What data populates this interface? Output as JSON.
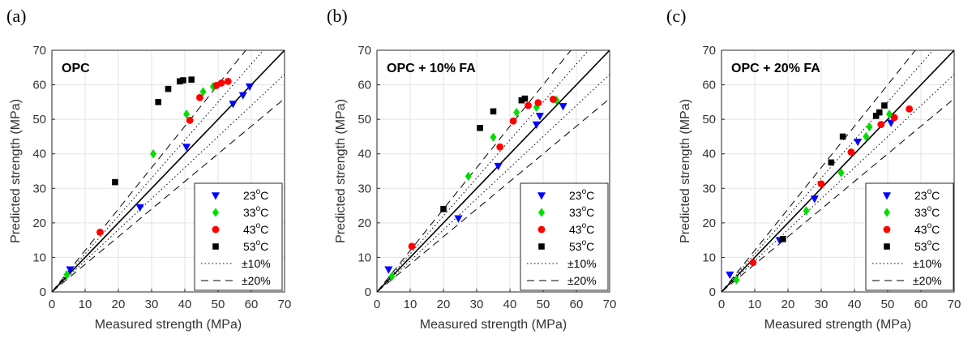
{
  "chart_data": [
    {
      "type": "scatter",
      "panel_label": "(a)",
      "title": "OPC",
      "xlabel": "Measured strength (MPa)",
      "ylabel": "Predicted strength (MPa)",
      "xlim": [
        0,
        70
      ],
      "ylim": [
        0,
        70
      ],
      "ticks": [
        0,
        10,
        20,
        30,
        40,
        50,
        60,
        70
      ],
      "grid": true,
      "legend_position": "bottom-right",
      "series": [
        {
          "name": "23",
          "unit": "oC",
          "marker": "triangle-down",
          "color": "#0000ff",
          "points": [
            [
              5.5,
              6.5
            ],
            [
              26.5,
              24.5
            ],
            [
              40.5,
              42
            ],
            [
              54.5,
              54.5
            ],
            [
              57.5,
              57
            ],
            [
              59.5,
              59.5
            ]
          ]
        },
        {
          "name": "33",
          "unit": "oC",
          "marker": "diamond",
          "color": "#00dd00",
          "points": [
            [
              4.5,
              5
            ],
            [
              30.5,
              40
            ],
            [
              40.5,
              51.5
            ],
            [
              45.5,
              58
            ],
            [
              48.5,
              59.5
            ]
          ]
        },
        {
          "name": "43",
          "unit": "oC",
          "marker": "circle",
          "color": "#ff0000",
          "points": [
            [
              14.5,
              17.3
            ],
            [
              41.5,
              49.7
            ],
            [
              44.5,
              56.3
            ],
            [
              49.5,
              59.8
            ],
            [
              51,
              60.5
            ],
            [
              53,
              61
            ]
          ]
        },
        {
          "name": "53",
          "unit": "oC",
          "marker": "square",
          "color": "#000000",
          "points": [
            [
              19,
              31.8
            ],
            [
              32,
              55
            ],
            [
              35,
              58.8
            ],
            [
              38.5,
              61
            ],
            [
              39.5,
              61.3
            ],
            [
              42,
              61.5
            ]
          ]
        }
      ],
      "reference_lines": [
        "±10%",
        "±20%"
      ]
    },
    {
      "type": "scatter",
      "panel_label": "(b)",
      "title": "OPC + 10% FA",
      "xlabel": "Measured strength (MPa)",
      "ylabel": "Predicted strength (MPa)",
      "xlim": [
        0,
        70
      ],
      "ylim": [
        0,
        70
      ],
      "ticks": [
        0,
        10,
        20,
        30,
        40,
        50,
        60,
        70
      ],
      "grid": true,
      "legend_position": "bottom-right",
      "series": [
        {
          "name": "23",
          "unit": "oC",
          "marker": "triangle-down",
          "color": "#0000ff",
          "points": [
            [
              3.5,
              6.5
            ],
            [
              24.5,
              21.3
            ],
            [
              36.5,
              36.5
            ],
            [
              48,
              48.5
            ],
            [
              49,
              51
            ],
            [
              56,
              53.8
            ]
          ]
        },
        {
          "name": "33",
          "unit": "oC",
          "marker": "diamond",
          "color": "#00dd00",
          "points": [
            [
              4.5,
              4.5
            ],
            [
              27.5,
              33.5
            ],
            [
              35,
              44.8
            ],
            [
              42,
              52
            ],
            [
              48,
              53.5
            ],
            [
              54,
              55.5
            ]
          ]
        },
        {
          "name": "43",
          "unit": "oC",
          "marker": "circle",
          "color": "#ff0000",
          "points": [
            [
              10.5,
              13.2
            ],
            [
              37,
              42
            ],
            [
              41,
              49.5
            ],
            [
              45.5,
              54
            ],
            [
              48.5,
              54.8
            ],
            [
              53,
              55.8
            ]
          ]
        },
        {
          "name": "53",
          "unit": "oC",
          "marker": "square",
          "color": "#000000",
          "points": [
            [
              20,
              24
            ],
            [
              31,
              47.5
            ],
            [
              35,
              52.3
            ],
            [
              43.5,
              55.5
            ],
            [
              44.5,
              56
            ]
          ]
        }
      ],
      "reference_lines": [
        "±10%",
        "±20%"
      ]
    },
    {
      "type": "scatter",
      "panel_label": "(c)",
      "title": "OPC + 20% FA",
      "xlabel": "Measured strength (MPa)",
      "ylabel": "Predicted strength (MPa)",
      "xlim": [
        0,
        70
      ],
      "ylim": [
        0,
        70
      ],
      "ticks": [
        0,
        10,
        20,
        30,
        40,
        50,
        60,
        70
      ],
      "grid": true,
      "legend_position": "bottom-right",
      "series": [
        {
          "name": "23",
          "unit": "oC",
          "marker": "triangle-down",
          "color": "#0000ff",
          "points": [
            [
              2.5,
              5
            ],
            [
              17.5,
              15
            ],
            [
              28,
              27
            ],
            [
              41,
              43.5
            ],
            [
              51,
              49
            ]
          ]
        },
        {
          "name": "33",
          "unit": "oC",
          "marker": "diamond",
          "color": "#00dd00",
          "points": [
            [
              4.5,
              3.5
            ],
            [
              25.5,
              23.5
            ],
            [
              36,
              34.5
            ],
            [
              43.5,
              45
            ],
            [
              44.5,
              47.8
            ],
            [
              50.5,
              51.5
            ]
          ]
        },
        {
          "name": "43",
          "unit": "oC",
          "marker": "circle",
          "color": "#ff0000",
          "points": [
            [
              9.5,
              8.5
            ],
            [
              30,
              31.3
            ],
            [
              39,
              40.5
            ],
            [
              48,
              48.5
            ],
            [
              52,
              50.5
            ],
            [
              56.5,
              53
            ]
          ]
        },
        {
          "name": "53",
          "unit": "oC",
          "marker": "square",
          "color": "#000000",
          "points": [
            [
              18.5,
              15.3
            ],
            [
              33,
              37.5
            ],
            [
              36.5,
              45
            ],
            [
              46.5,
              51
            ],
            [
              47.5,
              52
            ],
            [
              49,
              54
            ]
          ]
        }
      ],
      "reference_lines": [
        "±10%",
        "±20%"
      ]
    }
  ]
}
